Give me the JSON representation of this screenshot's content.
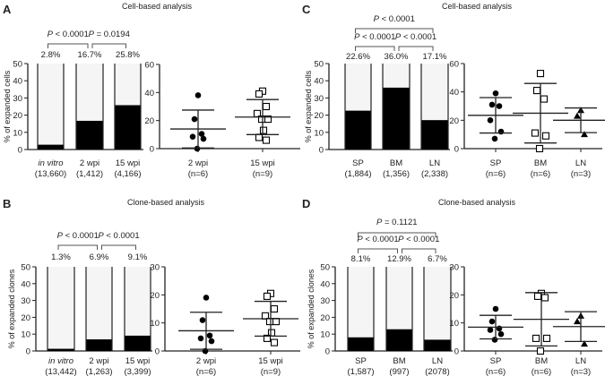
{
  "chart_data": [
    {
      "panel": "A",
      "type": "bar",
      "title": "Cell-based analysis",
      "bar": {
        "ylabel": "% of expanded cells",
        "ylim": [
          0,
          50
        ],
        "yticks": [
          0,
          10,
          20,
          30,
          40,
          50
        ],
        "categories": [
          "in vitro",
          "2 wpi",
          "15 wpi"
        ],
        "italic_categories": [
          true,
          false,
          false
        ],
        "counts": [
          "(13,660)",
          "(1,412)",
          "(4,166)"
        ],
        "values": [
          2.8,
          16.7,
          25.8
        ],
        "value_labels": [
          "2.8%",
          "16.7%",
          "25.8%"
        ],
        "comparisons": [
          {
            "from": 0,
            "to": 1,
            "label": "P < 0.0001"
          },
          {
            "from": 1,
            "to": 2,
            "label": "P = 0.0194"
          }
        ]
      },
      "scatter": {
        "ylim": [
          0,
          60
        ],
        "yticks": [
          0,
          20,
          40,
          60
        ],
        "groups": [
          {
            "label": "2 wpi",
            "n": "(n=6)",
            "marker": "circle",
            "points": [
              38,
              21,
              10.5,
              8.5,
              7,
              0
            ],
            "mean": 14,
            "sd": 13.5
          },
          {
            "label": "15 wpi",
            "n": "(n=9)",
            "marker": "square",
            "points": [
              41,
              39,
              30,
              25,
              21,
              21,
              13,
              8,
              6
            ],
            "mean": 22.5,
            "sd": 12.5
          }
        ]
      }
    },
    {
      "panel": "B",
      "type": "bar",
      "title": "Clone-based analysis",
      "bar": {
        "ylabel": "% of expanded clones",
        "ylim": [
          0,
          50
        ],
        "yticks": [
          0,
          10,
          20,
          30,
          40,
          50
        ],
        "categories": [
          "in vitro",
          "2 wpi",
          "15 wpi"
        ],
        "italic_categories": [
          true,
          false,
          false
        ],
        "counts": [
          "(13,442)",
          "(1,263)",
          "(3,399)"
        ],
        "values": [
          1.3,
          6.9,
          9.1
        ],
        "value_labels": [
          "1.3%",
          "6.9%",
          "9.1%"
        ],
        "comparisons": [
          {
            "from": 0,
            "to": 1,
            "label": "P < 0.0001"
          },
          {
            "from": 1,
            "to": 2,
            "label": "P < 0.0001"
          }
        ]
      },
      "scatter": {
        "ylim": [
          0,
          30
        ],
        "yticks": [
          0,
          10,
          20,
          30
        ],
        "groups": [
          {
            "label": "2 wpi",
            "n": "(n=6)",
            "marker": "circle",
            "points": [
              19,
              11,
              5.5,
              4.5,
              3.5,
              0
            ],
            "mean": 7.2,
            "sd": 6.6
          },
          {
            "label": "15 wpi",
            "n": "(n=9)",
            "marker": "square",
            "points": [
              20.5,
              19.5,
              15,
              12.5,
              10.5,
              10.5,
              6.5,
              4.5,
              3
            ],
            "mean": 11.5,
            "sd": 6.2
          }
        ]
      }
    },
    {
      "panel": "C",
      "type": "bar",
      "title": "Cell-based analysis",
      "bar": {
        "ylabel": "% of expanded cells",
        "ylim": [
          0,
          50
        ],
        "yticks": [
          0,
          10,
          20,
          30,
          40,
          50
        ],
        "categories": [
          "SP",
          "BM",
          "LN"
        ],
        "italic_categories": [
          false,
          false,
          false
        ],
        "counts": [
          "(1,884)",
          "(1,356)",
          "(2,338)"
        ],
        "values": [
          22.6,
          36.0,
          17.1
        ],
        "value_labels": [
          "22.6%",
          "36.0%",
          "17.1%"
        ],
        "comparisons": [
          {
            "from": 0,
            "to": 2,
            "label": "P < 0.0001"
          },
          {
            "from": 0,
            "to": 1,
            "label": "P < 0.0001"
          },
          {
            "from": 1,
            "to": 2,
            "label": "P < 0.0001"
          }
        ]
      },
      "scatter": {
        "ylim": [
          0,
          60
        ],
        "yticks": [
          0,
          20,
          40,
          60
        ],
        "groups": [
          {
            "label": "SP",
            "n": "(n=6)",
            "marker": "circle",
            "points": [
              39,
              31,
              30,
              20,
              12,
              7
            ],
            "mean": 23.5,
            "sd": 12.5
          },
          {
            "label": "BM",
            "n": "(n=6)",
            "marker": "square",
            "points": [
              53,
              41,
              35,
              11,
              9,
              0
            ],
            "mean": 25,
            "sd": 21
          },
          {
            "label": "LN",
            "n": "(n=3)",
            "marker": "triangle",
            "points": [
              27,
              23,
              10
            ],
            "mean": 20,
            "sd": 8.7
          }
        ]
      }
    },
    {
      "panel": "D",
      "type": "bar",
      "title": "Clone-based analysis",
      "bar": {
        "ylabel": "% of expanded clones",
        "ylim": [
          0,
          50
        ],
        "yticks": [
          0,
          10,
          20,
          30,
          40,
          50
        ],
        "categories": [
          "SP",
          "BM",
          "LN"
        ],
        "italic_categories": [
          false,
          false,
          false
        ],
        "counts": [
          "(1,587)",
          "(997)",
          "(2078)"
        ],
        "values": [
          8.1,
          12.9,
          6.7
        ],
        "value_labels": [
          "8.1%",
          "12.9%",
          "6.7%"
        ],
        "comparisons": [
          {
            "from": 0,
            "to": 2,
            "label": "P = 0.1121"
          },
          {
            "from": 0,
            "to": 1,
            "label": "P < 0.0001"
          },
          {
            "from": 1,
            "to": 2,
            "label": "P < 0.0001"
          }
        ]
      },
      "scatter": {
        "ylim": [
          0,
          30
        ],
        "yticks": [
          0,
          10,
          20,
          30
        ],
        "groups": [
          {
            "label": "SP",
            "n": "(n=6)",
            "marker": "circle",
            "points": [
              15,
              10.5,
              8,
              7.5,
              6,
              4
            ],
            "mean": 8.5,
            "sd": 4.2
          },
          {
            "label": "BM",
            "n": "(n=6)",
            "marker": "square",
            "points": [
              20.5,
              19.5,
              19,
              4.5,
              4.5,
              0
            ],
            "mean": 11.3,
            "sd": 9.5
          },
          {
            "label": "LN",
            "n": "(n=3)",
            "marker": "triangle",
            "points": [
              12.5,
              10.5,
              2.5
            ],
            "mean": 8.7,
            "sd": 5.3
          }
        ]
      }
    }
  ]
}
